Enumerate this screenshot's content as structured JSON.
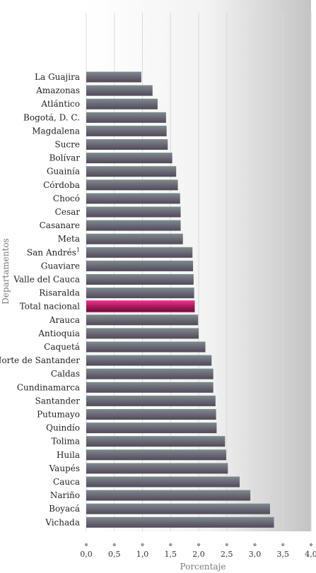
{
  "chart_data": {
    "type": "bar",
    "orientation": "horizontal",
    "xlabel": "Porcentaje",
    "ylabel": "Departamentos",
    "xlim": [
      0.0,
      4.0
    ],
    "xticks": [
      "0,0",
      "0,5",
      "1,0",
      "1,5",
      "2,0",
      "2,5",
      "3,0",
      "3,5",
      "4,0"
    ],
    "grid": true,
    "categories": [
      {
        "label": "La Guajira",
        "sup": "",
        "value": 0.98
      },
      {
        "label": "Amazonas",
        "sup": "",
        "value": 1.18
      },
      {
        "label": "Atlántico",
        "sup": "",
        "value": 1.27
      },
      {
        "label": "Bogotá, D. C.",
        "sup": "",
        "value": 1.42
      },
      {
        "label": "Magdalena",
        "sup": "",
        "value": 1.43
      },
      {
        "label": "Sucre",
        "sup": "",
        "value": 1.45
      },
      {
        "label": "Bolívar",
        "sup": "",
        "value": 1.53
      },
      {
        "label": "Guainía",
        "sup": "",
        "value": 1.6
      },
      {
        "label": "Córdoba",
        "sup": "",
        "value": 1.63
      },
      {
        "label": "Chocó",
        "sup": "",
        "value": 1.67
      },
      {
        "label": "Cesar",
        "sup": "",
        "value": 1.68
      },
      {
        "label": "Casanare",
        "sup": "",
        "value": 1.68
      },
      {
        "label": "Meta",
        "sup": "",
        "value": 1.72
      },
      {
        "label": "San Andrés",
        "sup": "1",
        "value": 1.89
      },
      {
        "label": "Guaviare",
        "sup": "",
        "value": 1.9
      },
      {
        "label": "Valle del Cauca",
        "sup": "",
        "value": 1.91
      },
      {
        "label": "Risaralda",
        "sup": "",
        "value": 1.92
      },
      {
        "label": "Total nacional",
        "sup": "",
        "value": 1.93,
        "highlight": true
      },
      {
        "label": "Arauca",
        "sup": "",
        "value": 1.99
      },
      {
        "label": "Antioquia",
        "sup": "",
        "value": 2.0
      },
      {
        "label": "Caquetá",
        "sup": "",
        "value": 2.12
      },
      {
        "label": "Norte de Santander",
        "sup": "",
        "value": 2.23
      },
      {
        "label": "Caldas",
        "sup": "",
        "value": 2.26
      },
      {
        "label": "Cundinamarca",
        "sup": "",
        "value": 2.26
      },
      {
        "label": "Santander",
        "sup": "",
        "value": 2.3
      },
      {
        "label": "Putumayo",
        "sup": "",
        "value": 2.31
      },
      {
        "label": "Quindío",
        "sup": "",
        "value": 2.32
      },
      {
        "label": "Tolima",
        "sup": "",
        "value": 2.47
      },
      {
        "label": "Huila",
        "sup": "",
        "value": 2.49
      },
      {
        "label": "Vaupés",
        "sup": "",
        "value": 2.52
      },
      {
        "label": "Cauca",
        "sup": "",
        "value": 2.73
      },
      {
        "label": "Nariño",
        "sup": "",
        "value": 2.92
      },
      {
        "label": "Boyacá",
        "sup": "",
        "value": 3.27
      },
      {
        "label": "Vichada",
        "sup": "",
        "value": 3.34
      }
    ]
  },
  "colors": {
    "bar_top": "#7a8e8c",
    "bar_mid": "#6e6b78",
    "bar_shadow": "#4f4b59",
    "highlight_top": "#e8338a",
    "highlight_mid": "#b01a5e",
    "highlight_shadow": "#6a0f3a",
    "grid": "#d9d9d9"
  }
}
